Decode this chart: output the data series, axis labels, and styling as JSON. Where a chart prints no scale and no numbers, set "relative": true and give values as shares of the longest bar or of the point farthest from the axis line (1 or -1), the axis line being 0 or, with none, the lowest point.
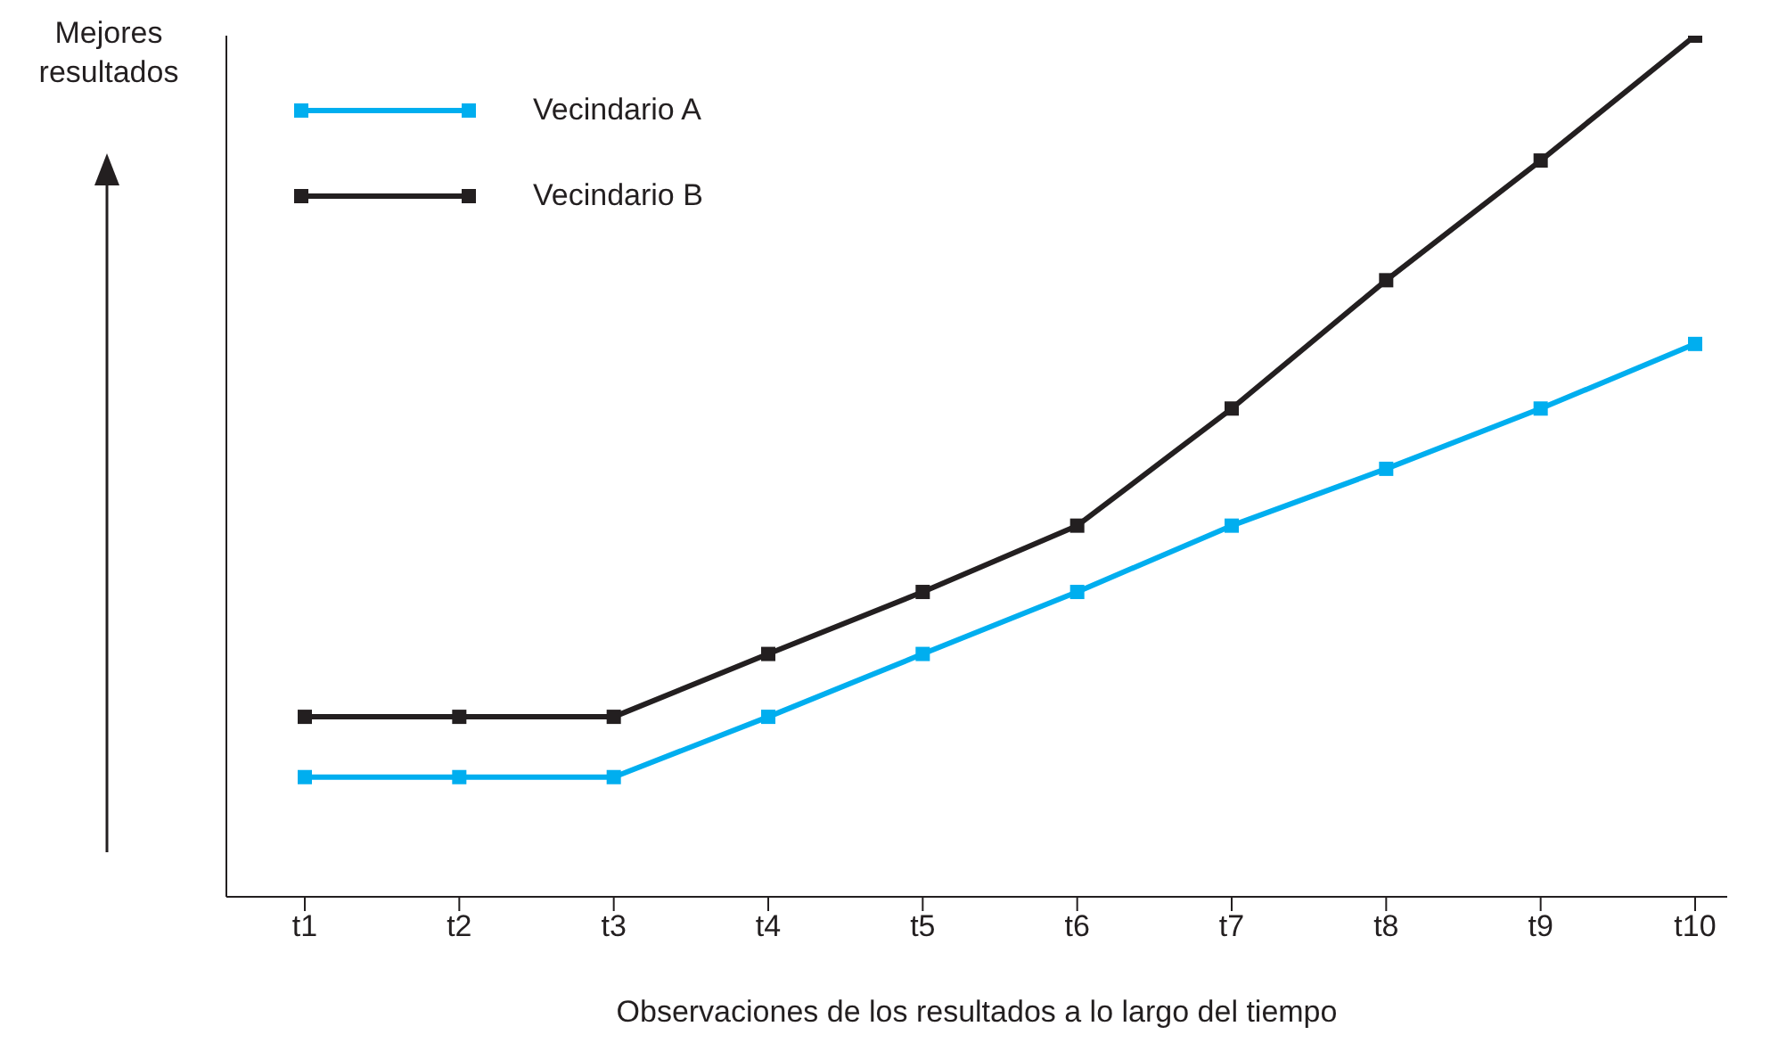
{
  "chart_data": {
    "type": "line",
    "relative": true,
    "xlabel": "Observaciones de los resultados a lo largo del tiempo",
    "annotations": [
      "Mejores resultados"
    ],
    "categories": [
      "t1",
      "t2",
      "t3",
      "t4",
      "t5",
      "t6",
      "t7",
      "t8",
      "t9",
      "t10"
    ],
    "legend": "top left",
    "marker": "square",
    "line_style": "solid",
    "grid": false,
    "series": [
      {
        "name": "Vecindario A",
        "color": "#00aeef",
        "values": [
          0.139,
          0.139,
          0.139,
          0.209,
          0.282,
          0.354,
          0.431,
          0.497,
          0.567,
          0.642
        ]
      },
      {
        "name": "Vecindario B",
        "color": "#231f20",
        "values": [
          0.209,
          0.209,
          0.209,
          0.282,
          0.354,
          0.431,
          0.567,
          0.716,
          0.855,
          1
        ]
      }
    ]
  }
}
